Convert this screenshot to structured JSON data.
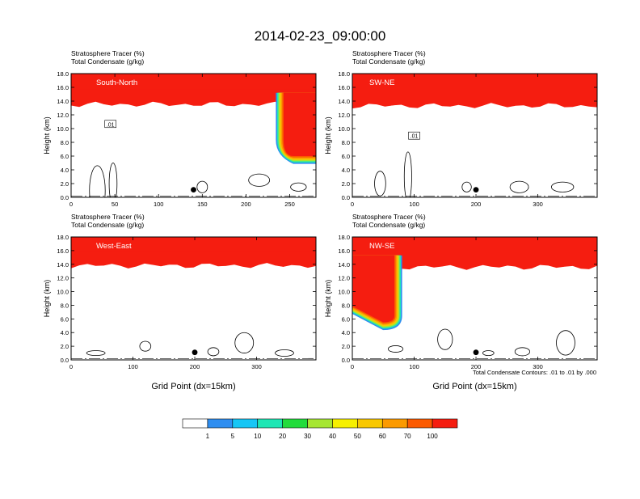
{
  "figure": {
    "title": "2014-02-23_09:00:00",
    "contour_note": "Total Condensate Contours: .01 to .01 by .000",
    "colorbar": {
      "colors": [
        "#ffffff",
        "#2f8ef0",
        "#16c6f5",
        "#1ee6b4",
        "#22dc3c",
        "#a6e632",
        "#f6f000",
        "#f9c800",
        "#fb9a00",
        "#fb5a00",
        "#f51d10"
      ],
      "labels": [
        "1",
        "5",
        "10",
        "20",
        "30",
        "40",
        "50",
        "60",
        "70",
        "100"
      ]
    }
  },
  "chart_data": [
    {
      "type": "heatmap",
      "panel_label": "South-North",
      "title_lines": [
        "Stratosphere Tracer   (%)",
        "Total Condensate   (g/kg)"
      ],
      "xlabel": "",
      "ylabel": "Height (km)",
      "xlim": [
        0,
        280
      ],
      "ylim": [
        0,
        18
      ],
      "xticks": [
        0,
        50,
        100,
        150,
        200,
        250
      ],
      "yticks": [
        0.0,
        2.0,
        4.0,
        6.0,
        8.0,
        10.0,
        12.0,
        14.0,
        16.0,
        18.0
      ],
      "tracer_base_km": 15.2,
      "intrusion": {
        "x": [
          243,
          280
        ],
        "base_km": 6.0
      },
      "contour_label": ".01",
      "marker": {
        "x": 140,
        "y": 1.1
      }
    },
    {
      "type": "heatmap",
      "panel_label": "SW-NE",
      "title_lines": [
        "Stratosphere Tracer   (%)",
        "Total Condensate   (g/kg)"
      ],
      "xlabel": "",
      "ylabel": "Height (km)",
      "xlim": [
        0,
        396
      ],
      "ylim": [
        0,
        18
      ],
      "xticks": [
        0,
        100,
        200,
        300
      ],
      "yticks": [
        0.0,
        2.0,
        4.0,
        6.0,
        8.0,
        10.0,
        12.0,
        14.0,
        16.0,
        18.0
      ],
      "tracer_base_km": 15.0,
      "contour_label": ".01",
      "marker": {
        "x": 200,
        "y": 1.1
      }
    },
    {
      "type": "heatmap",
      "panel_label": "West-East",
      "title_lines": [
        "Stratosphere Tracer   (%)",
        "Total Condensate   (g/kg)"
      ],
      "xlabel": "Grid Point (dx=15km)",
      "ylabel": "Height (km)",
      "xlim": [
        0,
        396
      ],
      "ylim": [
        0,
        18
      ],
      "xticks": [
        0,
        100,
        200,
        300
      ],
      "yticks": [
        0.0,
        2.0,
        4.0,
        6.0,
        8.0,
        10.0,
        12.0,
        14.0,
        16.0,
        18.0
      ],
      "tracer_base_km": 15.5,
      "marker": {
        "x": 200,
        "y": 1.1
      }
    },
    {
      "type": "heatmap",
      "panel_label": "NW-SE",
      "title_lines": [
        "Stratosphere Tracer   (%)",
        "Total Condensate   (g/kg)"
      ],
      "xlabel": "Grid Point (dx=15km)",
      "ylabel": "Height (km)",
      "xlim": [
        0,
        396
      ],
      "ylim": [
        0,
        18
      ],
      "xticks": [
        0,
        100,
        200,
        300
      ],
      "yticks": [
        0.0,
        2.0,
        4.0,
        6.0,
        8.0,
        10.0,
        12.0,
        14.0,
        16.0,
        18.0
      ],
      "tracer_base_km": 15.3,
      "intrusion": {
        "x": [
          0,
          68
        ],
        "base_km": 5.5
      },
      "marker": {
        "x": 200,
        "y": 1.1
      }
    }
  ]
}
